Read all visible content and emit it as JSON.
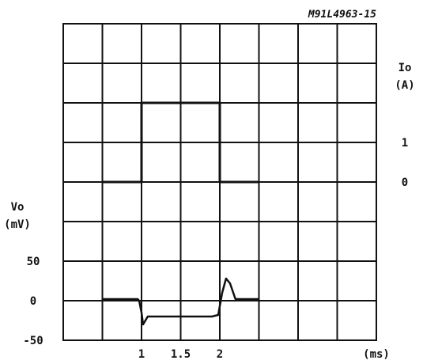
{
  "chart_data": {
    "type": "line",
    "title": "M91L4963-15",
    "x_axis": {
      "unit_label": "(ms)",
      "tick_labels": [
        {
          "value": 1.0,
          "label": "1"
        },
        {
          "value": 1.5,
          "label": "1.5"
        },
        {
          "value": 2.0,
          "label": "2"
        }
      ],
      "range": [
        0.0,
        3.85
      ],
      "divisions": 8,
      "ms_per_division": 0.5
    },
    "left_axis": {
      "label_line1": "Vo",
      "label_line2": "(mV)",
      "tick_labels": [
        {
          "value": 50,
          "label": "50"
        },
        {
          "value": 0,
          "label": "0"
        },
        {
          "value": -50,
          "label": "-50"
        }
      ],
      "mV_per_division": 50
    },
    "right_axis": {
      "label_line1": "Io",
      "label_line2": "(A)",
      "tick_labels": [
        {
          "value": 1,
          "label": "1"
        },
        {
          "value": 0,
          "label": "0"
        }
      ],
      "A_per_division": 1
    },
    "grid": true,
    "series": [
      {
        "axis": "right",
        "points": [
          [
            0.5,
            0
          ],
          [
            1.0,
            0
          ],
          [
            1.0,
            2
          ],
          [
            2.0,
            2
          ],
          [
            2.0,
            0
          ],
          [
            2.5,
            0
          ]
        ]
      },
      {
        "axis": "left",
        "points": [
          [
            0.5,
            2
          ],
          [
            0.95,
            2
          ],
          [
            0.97,
            0
          ],
          [
            1.0,
            -15
          ],
          [
            1.02,
            -30
          ],
          [
            1.05,
            -25
          ],
          [
            1.08,
            -20
          ],
          [
            1.9,
            -20
          ],
          [
            1.98,
            -18
          ],
          [
            2.03,
            10
          ],
          [
            2.08,
            28
          ],
          [
            2.13,
            22
          ],
          [
            2.2,
            2
          ],
          [
            2.5,
            2
          ]
        ]
      }
    ]
  }
}
